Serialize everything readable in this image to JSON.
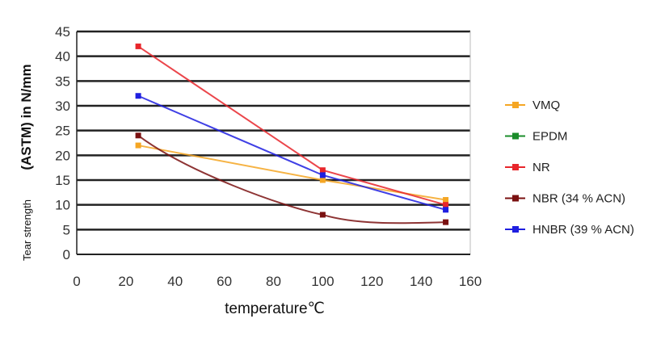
{
  "chart_data": {
    "type": "line",
    "title": "",
    "xlabel": "temperature℃",
    "ylabel": "(ASTM) in N/mm",
    "ylabel_secondary": "Tear strength",
    "xlim": [
      0,
      160
    ],
    "ylim": [
      0,
      45
    ],
    "xticks": [
      "0",
      "20",
      "40",
      "60",
      "80",
      "100",
      "120",
      "140",
      "160"
    ],
    "yticks": [
      "0",
      "5",
      "10",
      "15",
      "20",
      "25",
      "30",
      "35",
      "40",
      "45"
    ],
    "grid": "horizontal",
    "legend_position": "right",
    "series": [
      {
        "name": "VMQ",
        "color": "#f5a623",
        "x": [
          25,
          100,
          150
        ],
        "y": [
          22,
          15,
          11
        ]
      },
      {
        "name": "EPDM",
        "color": "#1a8c2a",
        "x": [],
        "y": []
      },
      {
        "name": "NR",
        "color": "#e8262b",
        "x": [
          25,
          100,
          150
        ],
        "y": [
          42,
          17,
          10
        ]
      },
      {
        "name": "NBR (34 % ACN)",
        "color": "#7a1010",
        "x": [
          25,
          100,
          150
        ],
        "y": [
          24,
          8,
          6.5
        ]
      },
      {
        "name": "HNBR (39 % ACN)",
        "color": "#1f1fe0",
        "x": [
          25,
          100,
          150
        ],
        "y": [
          32,
          16,
          9
        ]
      }
    ]
  }
}
